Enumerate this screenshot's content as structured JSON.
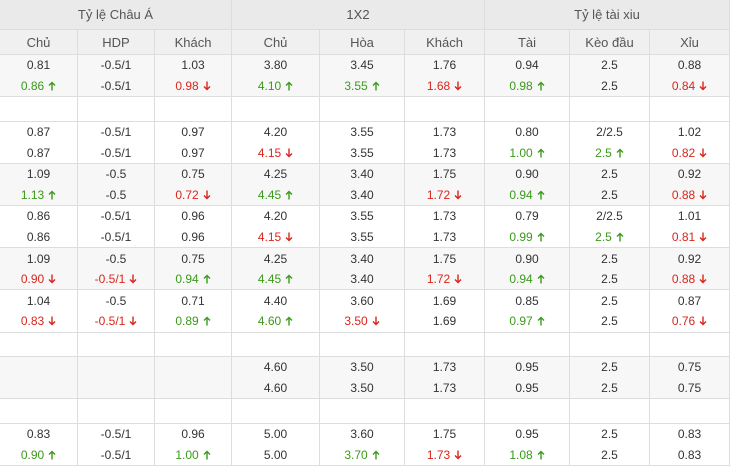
{
  "header": {
    "groups": [
      "Tỷ lệ Châu Á",
      "1X2",
      "Tỷ lệ tài xiu"
    ],
    "columns": [
      "Chủ",
      "HDP",
      "Khách",
      "Chủ",
      "Hòa",
      "Khách",
      "Tài",
      "Kèo đầu",
      "Xỉu"
    ]
  },
  "rows": [
    {
      "lines": [
        [
          "0.81",
          "-0.5/1",
          "1.03",
          "3.80",
          "3.45",
          "1.76",
          "0.94",
          "2.5",
          "0.88"
        ],
        [
          {
            "text": "0.86",
            "trend": "up"
          },
          "-0.5/1",
          {
            "text": "0.98",
            "trend": "down"
          },
          {
            "text": "4.10",
            "trend": "up"
          },
          {
            "text": "3.55",
            "trend": "up"
          },
          {
            "text": "1.68",
            "trend": "down"
          },
          {
            "text": "0.98",
            "trend": "up"
          },
          "2.5",
          {
            "text": "0.84",
            "trend": "down"
          }
        ]
      ]
    },
    null,
    {
      "lines": [
        [
          "0.87",
          "-0.5/1",
          "0.97",
          "4.20",
          "3.55",
          "1.73",
          "0.80",
          "2/2.5",
          "1.02"
        ],
        [
          "0.87",
          "-0.5/1",
          "0.97",
          {
            "text": "4.15",
            "trend": "down"
          },
          "3.55",
          "1.73",
          {
            "text": "1.00",
            "trend": "up"
          },
          {
            "text": "2.5",
            "trend": "up"
          },
          {
            "text": "0.82",
            "trend": "down"
          }
        ]
      ]
    },
    {
      "lines": [
        [
          "1.09",
          "-0.5",
          "0.75",
          "4.25",
          "3.40",
          "1.75",
          "0.90",
          "2.5",
          "0.92"
        ],
        [
          {
            "text": "1.13",
            "trend": "up"
          },
          "-0.5",
          {
            "text": "0.72",
            "trend": "down"
          },
          {
            "text": "4.45",
            "trend": "up"
          },
          "3.40",
          {
            "text": "1.72",
            "trend": "down"
          },
          {
            "text": "0.94",
            "trend": "up"
          },
          "2.5",
          {
            "text": "0.88",
            "trend": "down"
          }
        ]
      ]
    },
    {
      "lines": [
        [
          "0.86",
          "-0.5/1",
          "0.96",
          "4.20",
          "3.55",
          "1.73",
          "0.79",
          "2/2.5",
          "1.01"
        ],
        [
          "0.86",
          "-0.5/1",
          "0.96",
          {
            "text": "4.15",
            "trend": "down"
          },
          "3.55",
          "1.73",
          {
            "text": "0.99",
            "trend": "up"
          },
          {
            "text": "2.5",
            "trend": "up"
          },
          {
            "text": "0.81",
            "trend": "down"
          }
        ]
      ]
    },
    {
      "lines": [
        [
          "1.09",
          "-0.5",
          "0.75",
          "4.25",
          "3.40",
          "1.75",
          "0.90",
          "2.5",
          "0.92"
        ],
        [
          {
            "text": "0.90",
            "trend": "down"
          },
          {
            "text": "-0.5/1",
            "trend": "down"
          },
          {
            "text": "0.94",
            "trend": "up"
          },
          {
            "text": "4.45",
            "trend": "up"
          },
          "3.40",
          {
            "text": "1.72",
            "trend": "down"
          },
          {
            "text": "0.94",
            "trend": "up"
          },
          "2.5",
          {
            "text": "0.88",
            "trend": "down"
          }
        ]
      ]
    },
    {
      "lines": [
        [
          "1.04",
          "-0.5",
          "0.71",
          "4.40",
          "3.60",
          "1.69",
          "0.85",
          "2.5",
          "0.87"
        ],
        [
          {
            "text": "0.83",
            "trend": "down"
          },
          {
            "text": "-0.5/1",
            "trend": "down"
          },
          {
            "text": "0.89",
            "trend": "up"
          },
          {
            "text": "4.60",
            "trend": "up"
          },
          {
            "text": "3.50",
            "trend": "down"
          },
          "1.69",
          {
            "text": "0.97",
            "trend": "up"
          },
          "2.5",
          {
            "text": "0.76",
            "trend": "down"
          }
        ]
      ]
    },
    null,
    {
      "lines": [
        [
          null,
          null,
          null,
          "4.60",
          "3.50",
          "1.73",
          "0.95",
          "2.5",
          "0.75"
        ],
        [
          null,
          null,
          null,
          "4.60",
          "3.50",
          "1.73",
          "0.95",
          "2.5",
          "0.75"
        ]
      ]
    },
    null,
    {
      "lines": [
        [
          "0.83",
          "-0.5/1",
          "0.96",
          "5.00",
          "3.60",
          "1.75",
          "0.95",
          "2.5",
          "0.83"
        ],
        [
          {
            "text": "0.90",
            "trend": "up"
          },
          "-0.5/1",
          {
            "text": "1.00",
            "trend": "up"
          },
          "5.00",
          {
            "text": "3.70",
            "trend": "up"
          },
          {
            "text": "1.73",
            "trend": "down"
          },
          {
            "text": "1.08",
            "trend": "up"
          },
          "2.5",
          "0.83"
        ]
      ]
    }
  ]
}
